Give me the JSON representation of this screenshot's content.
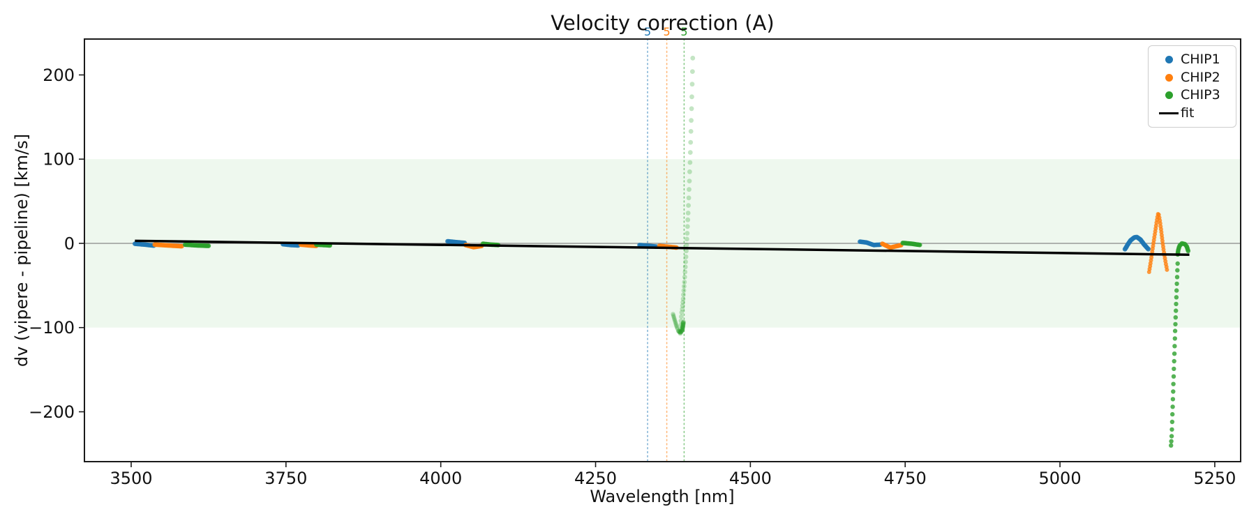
{
  "chart_data": {
    "type": "scatter",
    "title": "Velocity correction (A)",
    "xlabel": "Wavelength [nm]",
    "ylabel": "dv (vipere - pipeline) [km/s]",
    "xlim": [
      3424.5,
      5291.8
    ],
    "ylim": [
      -259.2,
      242.6
    ],
    "grid": false,
    "legend_position": "upper right",
    "xticks": [
      3500,
      3750,
      4000,
      4250,
      4500,
      4750,
      5000,
      5250
    ],
    "xtick_labels": [
      "3500",
      "3750",
      "4000",
      "4250",
      "4500",
      "4750",
      "5000",
      "5250"
    ],
    "yticks": [
      -200,
      -100,
      0,
      100,
      200
    ],
    "ytick_labels": [
      "−200",
      "−100",
      "0",
      "100",
      "200"
    ],
    "band": {
      "ymin": -100,
      "ymax": 100,
      "color": "#2ca02c",
      "alpha": 0.08
    },
    "zero_line": {
      "y": 0,
      "color": "#888888",
      "width": 1.3
    },
    "vlines": [
      {
        "x": 4334,
        "color": "#1f77b4",
        "label": "5"
      },
      {
        "x": 4365,
        "color": "#ff7f0e",
        "label": "5"
      },
      {
        "x": 4393,
        "color": "#2ca02c",
        "label": "5"
      }
    ],
    "fit": {
      "label": "fit",
      "color": "#000000",
      "width": 3.5,
      "points": [
        [
          3506,
          3
        ],
        [
          5209,
          -13.5
        ]
      ]
    },
    "series": [
      {
        "name": "CHIP1",
        "color": "#1f77b4",
        "segments": [
          {
            "mode": "run",
            "spacing": 1.3,
            "r": 3.3,
            "alpha": 0.85,
            "pts": [
              [
                3506,
                -0.5
              ],
              [
                3522,
                -1.5
              ],
              [
                3538,
                -2.8
              ]
            ]
          },
          {
            "mode": "run",
            "spacing": 1.3,
            "r": 3.3,
            "alpha": 0.85,
            "pts": [
              [
                3745,
                -1
              ],
              [
                3758,
                -2
              ],
              [
                3771,
                -2.5
              ]
            ]
          },
          {
            "mode": "run",
            "spacing": 1.3,
            "r": 3.3,
            "alpha": 0.85,
            "pts": [
              [
                4011,
                2.5
              ],
              [
                4024,
                1.5
              ],
              [
                4039,
                0.5
              ]
            ]
          },
          {
            "mode": "run",
            "spacing": 1.3,
            "r": 3.3,
            "alpha": 0.85,
            "pts": [
              [
                4321,
                -2
              ],
              [
                4336,
                -3
              ],
              [
                4350,
                -4
              ]
            ]
          },
          {
            "mode": "run",
            "spacing": 1.3,
            "r": 3.3,
            "alpha": 0.85,
            "pts": [
              [
                4677,
                2
              ],
              [
                4688,
                1
              ],
              [
                4699,
                -2
              ],
              [
                4710,
                -1.5
              ]
            ]
          },
          {
            "mode": "run",
            "spacing": 1.6,
            "r": 3.4,
            "alpha": 0.85,
            "pts": [
              [
                5105,
                -7
              ],
              [
                5109,
                -2
              ],
              [
                5114,
                3.5
              ],
              [
                5120,
                7
              ],
              [
                5124,
                7.5
              ],
              [
                5130,
                4.5
              ],
              [
                5136,
                -1.5
              ],
              [
                5141,
                -5.5
              ],
              [
                5143,
                -7
              ]
            ]
          }
        ]
      },
      {
        "name": "CHIP2",
        "color": "#ff7f0e",
        "segments": [
          {
            "mode": "run",
            "spacing": 1.3,
            "r": 3.3,
            "alpha": 0.85,
            "pts": [
              [
                3538,
                -1.5
              ],
              [
                3560,
                -2.5
              ],
              [
                3583,
                -3.5
              ]
            ]
          },
          {
            "mode": "run",
            "spacing": 1.3,
            "r": 3.3,
            "alpha": 0.85,
            "pts": [
              [
                3774,
                -1.5
              ],
              [
                3788,
                -2.5
              ],
              [
                3799,
                -3
              ]
            ]
          },
          {
            "mode": "run",
            "spacing": 1.3,
            "r": 3.3,
            "alpha": 0.85,
            "pts": [
              [
                4040,
                -2
              ],
              [
                4053,
                -4.5
              ],
              [
                4067,
                -3
              ]
            ]
          },
          {
            "mode": "run",
            "spacing": 1.3,
            "r": 3.3,
            "alpha": 0.85,
            "pts": [
              [
                4353,
                -3
              ],
              [
                4367,
                -4
              ],
              [
                4381,
                -5
              ]
            ]
          },
          {
            "mode": "run",
            "spacing": 1.3,
            "r": 3.3,
            "alpha": 0.85,
            "pts": [
              [
                4713,
                -0.5
              ],
              [
                4726,
                -5
              ],
              [
                4744,
                -2
              ]
            ]
          },
          {
            "mode": "run",
            "spacing": 4.2,
            "r": 3.0,
            "alpha": 0.8,
            "pts": [
              [
                5144,
                -34
              ],
              [
                5147,
                -20
              ],
              [
                5150,
                -5
              ],
              [
                5153,
                10
              ],
              [
                5156,
                25
              ],
              [
                5158,
                34
              ],
              [
                5159,
                36
              ],
              [
                5161,
                29
              ],
              [
                5164,
                12
              ],
              [
                5167,
                -6
              ],
              [
                5170,
                -20
              ],
              [
                5173,
                -32
              ]
            ]
          }
        ]
      },
      {
        "name": "CHIP3",
        "color": "#2ca02c",
        "segments": [
          {
            "mode": "run",
            "spacing": 1.3,
            "r": 3.3,
            "alpha": 0.85,
            "pts": [
              [
                3587,
                -1.5
              ],
              [
                3607,
                -2.5
              ],
              [
                3626,
                -3
              ]
            ]
          },
          {
            "mode": "run",
            "spacing": 1.3,
            "r": 3.3,
            "alpha": 0.85,
            "pts": [
              [
                3799,
                -1.5
              ],
              [
                3811,
                -2
              ],
              [
                3822,
                -2.5
              ]
            ]
          },
          {
            "mode": "run",
            "spacing": 1.3,
            "r": 3.3,
            "alpha": 0.85,
            "pts": [
              [
                4068,
                -0.5
              ],
              [
                4081,
                -1.5
              ],
              [
                4093,
                -2
              ]
            ]
          },
          {
            "mode": "dots",
            "r": 3.4,
            "alpha": 0.28,
            "pts": [
              [
                4407,
                220
              ],
              [
                4406.5,
                204
              ],
              [
                4406,
                189
              ],
              [
                4405.5,
                174
              ],
              [
                4405,
                160
              ],
              [
                4404.5,
                146
              ],
              [
                4404,
                133
              ],
              [
                4403.5,
                120
              ],
              [
                4403,
                108
              ],
              [
                4402.5,
                96
              ],
              [
                4402,
                85
              ],
              [
                4401.5,
                74
              ],
              [
                4401,
                64
              ],
              [
                4400.5,
                54
              ],
              [
                4400,
                45
              ],
              [
                4399.5,
                36
              ],
              [
                4399,
                28
              ],
              [
                4398.5,
                20
              ],
              [
                4398,
                12
              ],
              [
                4397.5,
                5
              ],
              [
                4397,
                -2
              ],
              [
                4396.5,
                -9
              ],
              [
                4396,
                -16
              ],
              [
                4395.5,
                -22
              ],
              [
                4395,
                -28
              ],
              [
                4394.5,
                -34
              ],
              [
                4394,
                -40
              ],
              [
                4393.5,
                -46
              ],
              [
                4393,
                -51
              ],
              [
                4392.5,
                -56
              ],
              [
                4392,
                -61
              ],
              [
                4391.5,
                -66
              ],
              [
                4391,
                -70
              ],
              [
                4390.5,
                -74
              ],
              [
                4390,
                -78
              ],
              [
                4389,
                -82
              ],
              [
                4388.5,
                -87
              ],
              [
                4388,
                -92
              ],
              [
                4387.6,
                -97
              ],
              [
                4387.2,
                -102
              ],
              [
                4386.8,
                -107
              ]
            ]
          },
          {
            "mode": "run",
            "spacing": 2.2,
            "r": 3.2,
            "alpha": 0.3,
            "pts": [
              [
                4375,
                -84
              ],
              [
                4377,
                -89
              ],
              [
                4379,
                -94
              ],
              [
                4381,
                -99
              ],
              [
                4383,
                -103
              ]
            ]
          },
          {
            "mode": "run",
            "spacing": 1.4,
            "r": 3.4,
            "alpha": 0.45,
            "pts": [
              [
                4384,
                -104
              ],
              [
                4387,
                -106
              ],
              [
                4390,
                -103
              ],
              [
                4391,
                -98
              ],
              [
                4392,
                -93
              ]
            ]
          },
          {
            "mode": "run",
            "spacing": 1.3,
            "r": 3.3,
            "alpha": 0.85,
            "pts": [
              [
                4746,
                0.5
              ],
              [
                4761,
                -0.5
              ],
              [
                4775,
                -2
              ]
            ]
          },
          {
            "mode": "run",
            "spacing": 2.2,
            "r": 3.3,
            "alpha": 0.85,
            "pts": [
              [
                5207,
                -9
              ],
              [
                5205,
                -4
              ],
              [
                5202,
                -1
              ],
              [
                5197,
                0
              ],
              [
                5193,
                -3
              ],
              [
                5191,
                -8
              ],
              [
                5190,
                -14
              ]
            ]
          },
          {
            "mode": "dots",
            "r": 3.2,
            "alpha": 0.8,
            "pts": [
              [
                5190,
                -24
              ],
              [
                5189.6,
                -32
              ],
              [
                5189.2,
                -40
              ],
              [
                5188.8,
                -48
              ],
              [
                5188.4,
                -56
              ],
              [
                5188,
                -64
              ],
              [
                5187.6,
                -72
              ],
              [
                5187.2,
                -80
              ],
              [
                5186.8,
                -88
              ],
              [
                5186.4,
                -96
              ],
              [
                5186,
                -104
              ],
              [
                5185.6,
                -113
              ],
              [
                5185.2,
                -122
              ],
              [
                5184.8,
                -131
              ],
              [
                5184.4,
                -140
              ],
              [
                5184,
                -149
              ],
              [
                5183.6,
                -158
              ],
              [
                5183.2,
                -167
              ],
              [
                5182.8,
                -176
              ],
              [
                5182.4,
                -185
              ],
              [
                5182,
                -194
              ],
              [
                5181.6,
                -203
              ],
              [
                5181.2,
                -212
              ],
              [
                5180.8,
                -221
              ],
              [
                5180.3,
                -229
              ],
              [
                5179.8,
                -235
              ],
              [
                5179.3,
                -240
              ]
            ]
          }
        ]
      }
    ]
  },
  "legend": {
    "entries": [
      {
        "label": "CHIP1",
        "color": "#1f77b4",
        "marker": "dot"
      },
      {
        "label": "CHIP2",
        "color": "#ff7f0e",
        "marker": "dot"
      },
      {
        "label": "CHIP3",
        "color": "#2ca02c",
        "marker": "dot"
      },
      {
        "label": "fit",
        "color": "#000000",
        "marker": "line"
      }
    ]
  }
}
